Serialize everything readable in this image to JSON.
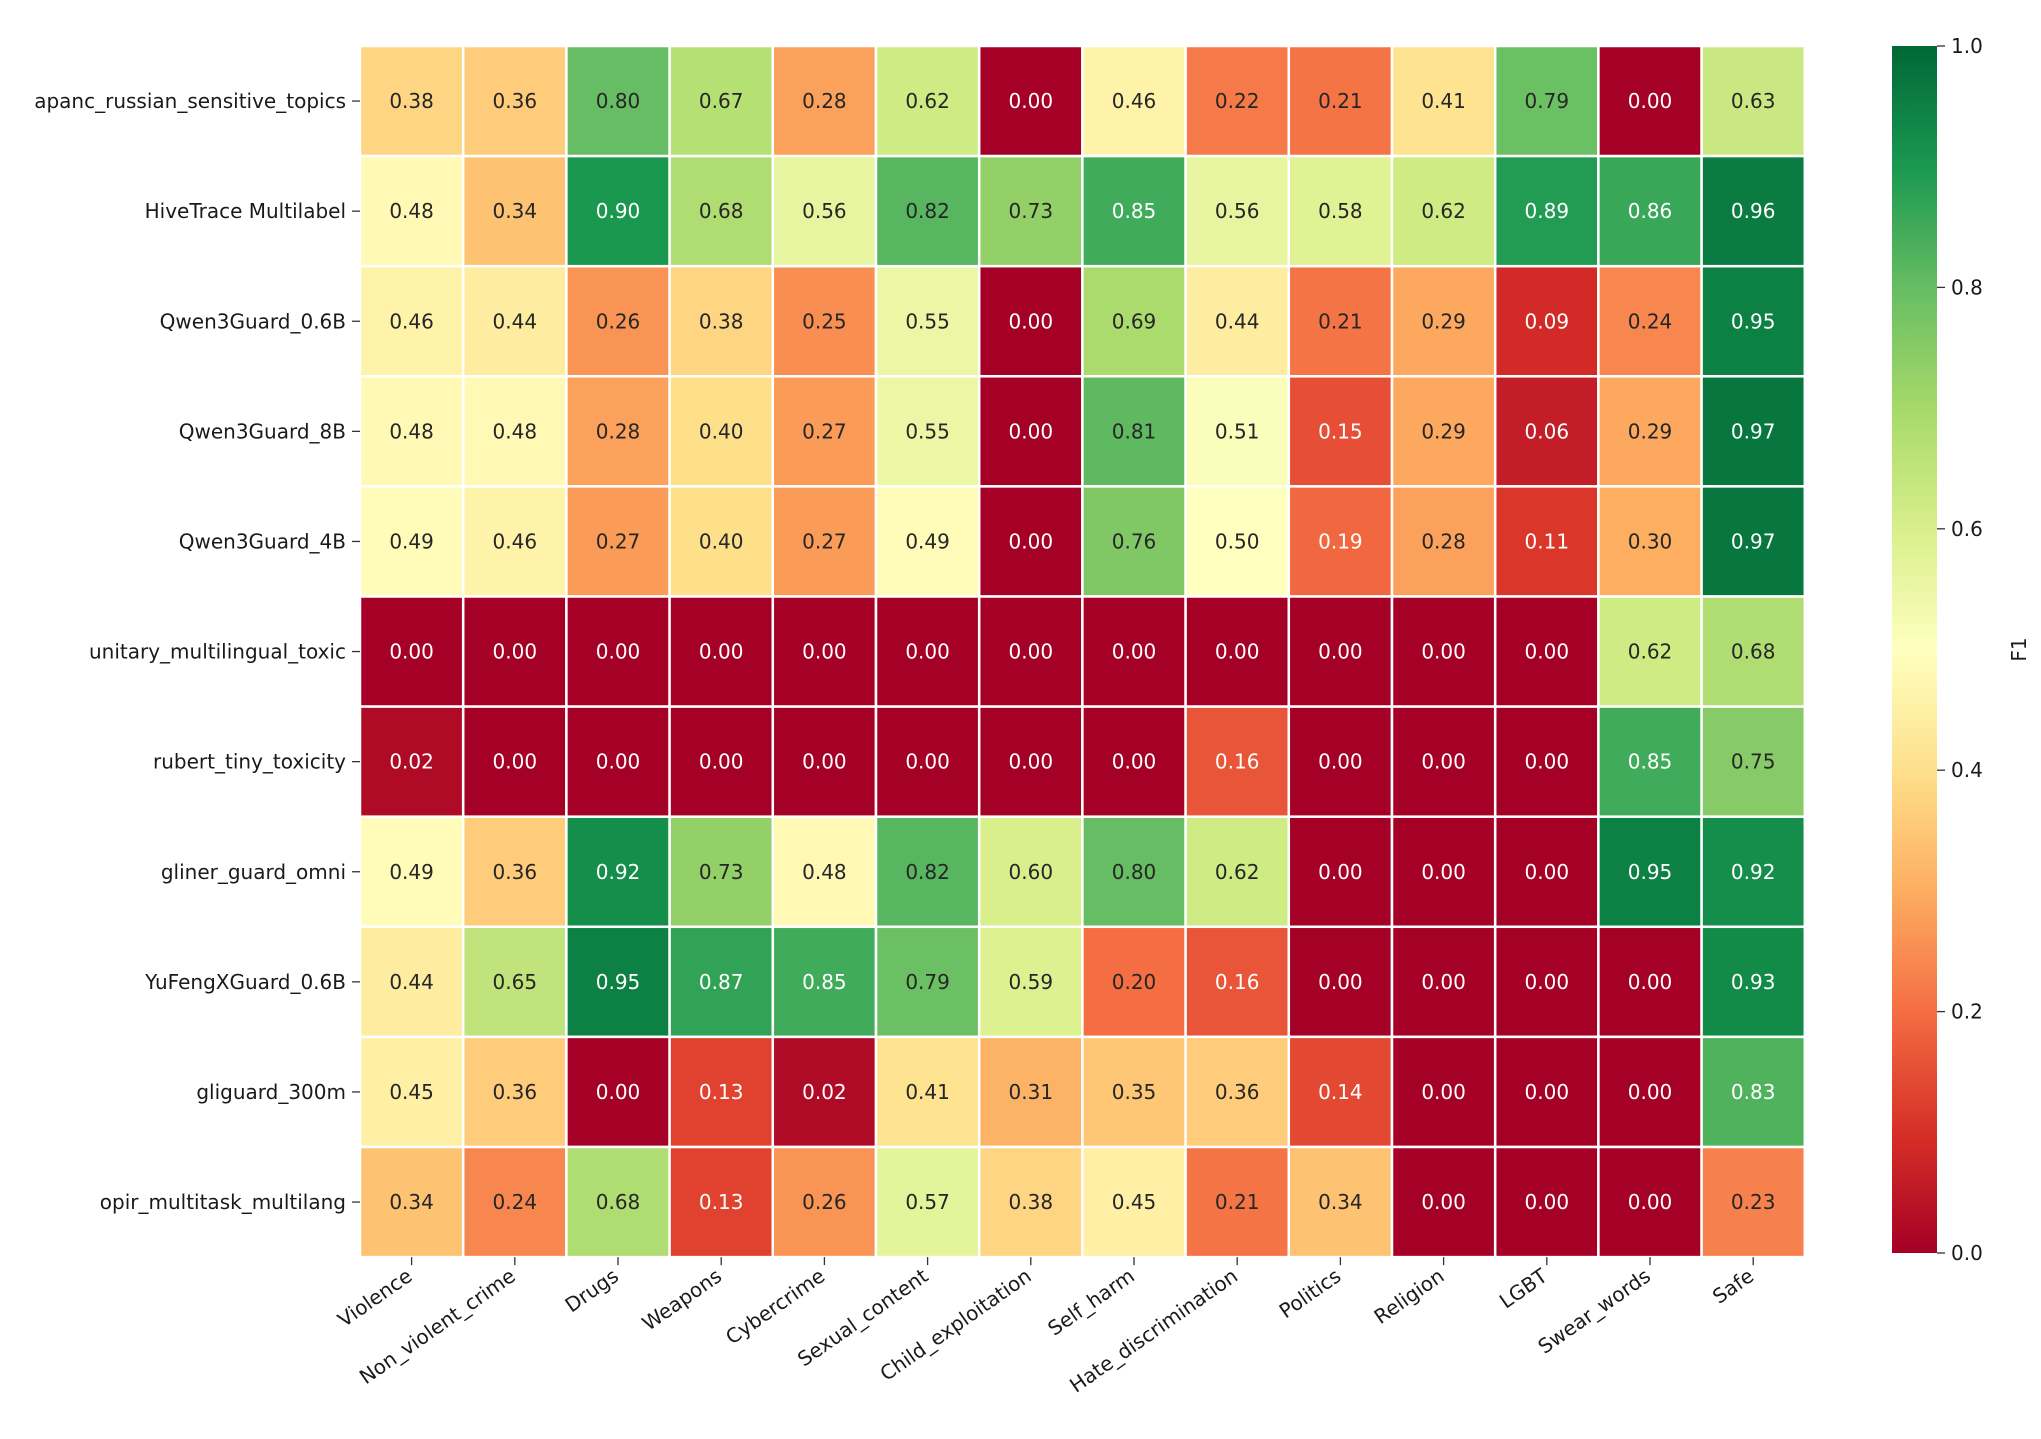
{
  "chart_data": {
    "type": "heatmap",
    "title": "",
    "xlabel": "",
    "ylabel": "",
    "rows": [
      "apanc_russian_sensitive_topics",
      "HiveTrace Multilabel",
      "Qwen3Guard_0.6B",
      "Qwen3Guard_8B",
      "Qwen3Guard_4B",
      "unitary_multilingual_toxic",
      "rubert_tiny_toxicity",
      "gliner_guard_omni",
      "YuFengXGuard_0.6B",
      "gliguard_300m",
      "opir_multitask_multilang"
    ],
    "columns": [
      "Violence",
      "Non_violent_crime",
      "Drugs",
      "Weapons",
      "Cybercrime",
      "Sexual_content",
      "Child_exploitation",
      "Self_harm",
      "Hate_discrimination",
      "Politics",
      "Religion",
      "LGBT",
      "Swear_words",
      "Safe"
    ],
    "values": [
      [
        0.38,
        0.36,
        0.8,
        0.67,
        0.28,
        0.62,
        0.0,
        0.46,
        0.22,
        0.21,
        0.41,
        0.79,
        0.0,
        0.63
      ],
      [
        0.48,
        0.34,
        0.9,
        0.68,
        0.56,
        0.82,
        0.73,
        0.85,
        0.56,
        0.58,
        0.62,
        0.89,
        0.86,
        0.96
      ],
      [
        0.46,
        0.44,
        0.26,
        0.38,
        0.25,
        0.55,
        0.0,
        0.69,
        0.44,
        0.21,
        0.29,
        0.09,
        0.24,
        0.95
      ],
      [
        0.48,
        0.48,
        0.28,
        0.4,
        0.27,
        0.55,
        0.0,
        0.81,
        0.51,
        0.15,
        0.29,
        0.06,
        0.29,
        0.97
      ],
      [
        0.49,
        0.46,
        0.27,
        0.4,
        0.27,
        0.49,
        0.0,
        0.76,
        0.5,
        0.19,
        0.28,
        0.11,
        0.3,
        0.97
      ],
      [
        0.0,
        0.0,
        0.0,
        0.0,
        0.0,
        0.0,
        0.0,
        0.0,
        0.0,
        0.0,
        0.0,
        0.0,
        0.62,
        0.68
      ],
      [
        0.02,
        0.0,
        0.0,
        0.0,
        0.0,
        0.0,
        0.0,
        0.0,
        0.16,
        0.0,
        0.0,
        0.0,
        0.85,
        0.75
      ],
      [
        0.49,
        0.36,
        0.92,
        0.73,
        0.48,
        0.82,
        0.6,
        0.8,
        0.62,
        0.0,
        0.0,
        0.0,
        0.95,
        0.92
      ],
      [
        0.44,
        0.65,
        0.95,
        0.87,
        0.85,
        0.79,
        0.59,
        0.2,
        0.16,
        0.0,
        0.0,
        0.0,
        0.0,
        0.93
      ],
      [
        0.45,
        0.36,
        0.0,
        0.13,
        0.02,
        0.41,
        0.31,
        0.35,
        0.36,
        0.14,
        0.0,
        0.0,
        0.0,
        0.83
      ],
      [
        0.34,
        0.24,
        0.68,
        0.13,
        0.26,
        0.57,
        0.38,
        0.45,
        0.21,
        0.34,
        0.0,
        0.0,
        0.0,
        0.23
      ]
    ],
    "colorbar": {
      "label": "F1",
      "range": [
        0.0,
        1.0
      ],
      "ticks": [
        "0.0",
        "0.2",
        "0.4",
        "0.6",
        "0.8",
        "1.0"
      ],
      "colormap": "RdYlGn",
      "colormap_stops": [
        "#a50026",
        "#d73027",
        "#f46d43",
        "#fdae61",
        "#fee08b",
        "#ffffbf",
        "#d9ef8b",
        "#a6d96a",
        "#66bd63",
        "#1a9850",
        "#006837"
      ]
    },
    "annotations": "two-decimal value in each cell",
    "grid": "white cell separators",
    "legend": "colorbar on right"
  }
}
